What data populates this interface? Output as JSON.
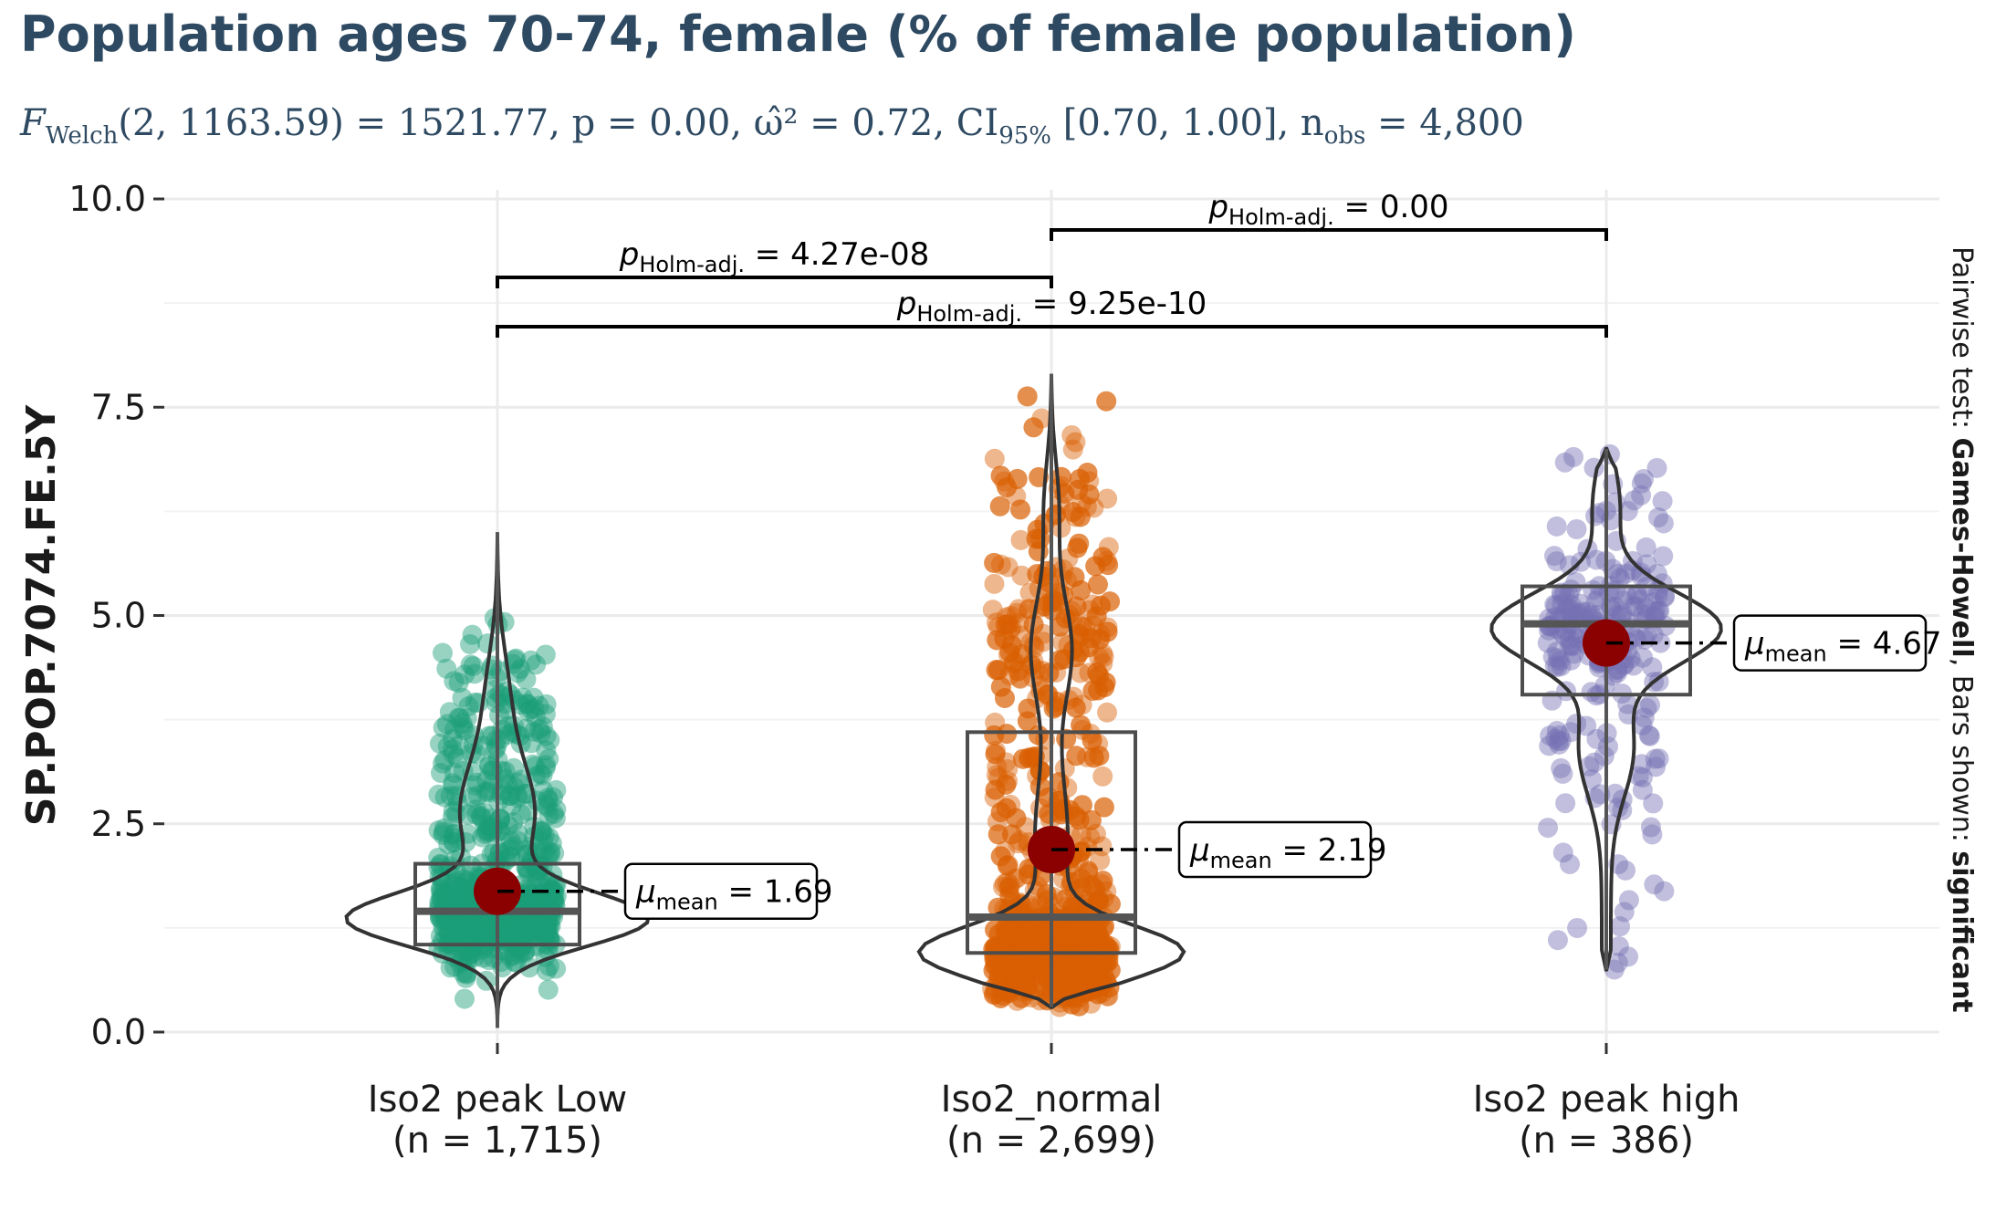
{
  "title": "Population ages 70-74, female (% of female population)",
  "subtitle": {
    "F": "F",
    "F_sub": "Welch",
    "stats": "(2, 1163.59) = 1521.77, p = 0.00, ω̂² = 0.72, CI",
    "ci_sub": "95%",
    "ci_rest": " [0.70, 1.00], n",
    "n_sub": "obs",
    "n_rest": " = 4,800"
  },
  "right_caption": {
    "prefix": "Pairwise test: ",
    "test": "Games-Howell",
    "middle": ", Bars shown: ",
    "bars": "significant"
  },
  "chart_data": {
    "type": "violin-box-jitter",
    "ylabel": "SP.POP.7074.FE.5Y",
    "ylim": [
      0,
      10
    ],
    "yticks": [
      "0.0",
      "2.5",
      "5.0",
      "7.5",
      "10.0"
    ],
    "grid": true,
    "groups": [
      {
        "label": "Iso2 peak  Low",
        "n_label": "(n = 1,715)",
        "color": "#1b9e77",
        "mean": 1.69,
        "mean_label": "= 1.69",
        "median": 1.45,
        "q1": 1.05,
        "q3": 2.02,
        "min": 0.05,
        "max": 6.0
      },
      {
        "label": "Iso2_normal",
        "n_label": "(n = 2,699)",
        "color": "#d95f02",
        "mean": 2.19,
        "mean_label": "= 2.19",
        "median": 1.38,
        "q1": 0.95,
        "q3": 3.6,
        "min": 0.3,
        "max": 7.9
      },
      {
        "label": "Iso2 peak  high",
        "n_label": "(n = 386)",
        "color": "#7570b3",
        "mean": 4.67,
        "mean_label": "= 4.67",
        "median": 4.9,
        "q1": 4.05,
        "q3": 5.35,
        "min": 0.75,
        "max": 7.0
      }
    ],
    "mean_symbol": "μ",
    "mean_sub": "mean",
    "pairwise": [
      {
        "from": 0,
        "to": 1,
        "p_text": "= 4.27e-08",
        "p_sub": "Holm-adj."
      },
      {
        "from": 1,
        "to": 2,
        "p_text": "= 0.00",
        "p_sub": "Holm-adj."
      },
      {
        "from": 0,
        "to": 2,
        "p_text": "= 9.25e-10",
        "p_sub": "Holm-adj."
      }
    ],
    "colors": {
      "mean_point": "#8b0000",
      "axis_text": "#1a1a1a",
      "grid": "#ebebeb"
    }
  }
}
